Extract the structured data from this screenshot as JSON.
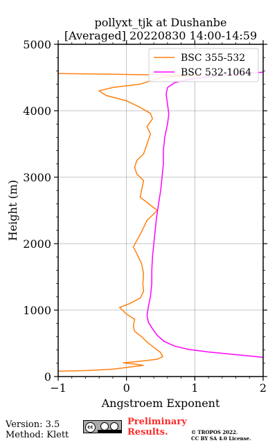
{
  "chart_data": {
    "type": "line",
    "title_line1": "pollyxt_tjk at Dushanbe",
    "title_line2": "[Averaged] 20220830 14:00-14:59",
    "xlabel": "Angstroem Exponent",
    "ylabel": "Height (m)",
    "xlim": [
      -1,
      2
    ],
    "ylim": [
      0,
      5000
    ],
    "xticks": [
      -1,
      0,
      1,
      2
    ],
    "yticks": [
      0,
      1000,
      2000,
      3000,
      4000,
      5000
    ],
    "grid": true,
    "legend_position": "top-right",
    "series": [
      {
        "name": "BSC 355-532",
        "color": "#ff7f0e",
        "points": [
          [
            -1.0,
            80
          ],
          [
            -0.6,
            90
          ],
          [
            -0.2,
            110
          ],
          [
            0.1,
            150
          ],
          [
            0.25,
            170
          ],
          [
            0.1,
            190
          ],
          [
            -0.05,
            205
          ],
          [
            0.2,
            230
          ],
          [
            0.45,
            260
          ],
          [
            0.53,
            300
          ],
          [
            0.5,
            360
          ],
          [
            0.4,
            440
          ],
          [
            0.3,
            520
          ],
          [
            0.22,
            600
          ],
          [
            0.12,
            680
          ],
          [
            0.1,
            760
          ],
          [
            0.12,
            860
          ],
          [
            0.0,
            940
          ],
          [
            -0.1,
            1040
          ],
          [
            0.05,
            1100
          ],
          [
            0.2,
            1180
          ],
          [
            0.25,
            1280
          ],
          [
            0.24,
            1400
          ],
          [
            0.25,
            1550
          ],
          [
            0.22,
            1700
          ],
          [
            0.15,
            1850
          ],
          [
            0.1,
            1950
          ],
          [
            0.18,
            2100
          ],
          [
            0.23,
            2200
          ],
          [
            0.3,
            2350
          ],
          [
            0.45,
            2500
          ],
          [
            0.3,
            2620
          ],
          [
            0.2,
            2700
          ],
          [
            0.22,
            2800
          ],
          [
            0.25,
            2950
          ],
          [
            0.15,
            3050
          ],
          [
            0.12,
            3150
          ],
          [
            0.15,
            3250
          ],
          [
            0.25,
            3350
          ],
          [
            0.3,
            3500
          ],
          [
            0.35,
            3650
          ],
          [
            0.3,
            3760
          ],
          [
            0.38,
            3880
          ],
          [
            0.35,
            3960
          ],
          [
            0.2,
            4050
          ],
          [
            0.0,
            4150
          ],
          [
            -0.3,
            4230
          ],
          [
            -0.4,
            4300
          ],
          [
            -0.2,
            4350
          ],
          [
            0.2,
            4400
          ],
          [
            0.35,
            4450
          ],
          [
            0.5,
            4500
          ],
          [
            0.7,
            4520
          ],
          [
            1.1,
            4530
          ],
          [
            -0.2,
            4550
          ],
          [
            -1.0,
            4560
          ]
        ]
      },
      {
        "name": "BSC 532-1064",
        "color": "#ff00ff",
        "points": [
          [
            2.0,
            290
          ],
          [
            1.8,
            310
          ],
          [
            1.5,
            340
          ],
          [
            1.2,
            370
          ],
          [
            0.9,
            410
          ],
          [
            0.7,
            460
          ],
          [
            0.55,
            530
          ],
          [
            0.45,
            620
          ],
          [
            0.38,
            720
          ],
          [
            0.32,
            820
          ],
          [
            0.3,
            920
          ],
          [
            0.32,
            1050
          ],
          [
            0.35,
            1200
          ],
          [
            0.37,
            1400
          ],
          [
            0.37,
            1600
          ],
          [
            0.38,
            1800
          ],
          [
            0.4,
            2000
          ],
          [
            0.42,
            2200
          ],
          [
            0.44,
            2400
          ],
          [
            0.47,
            2600
          ],
          [
            0.5,
            2800
          ],
          [
            0.52,
            3000
          ],
          [
            0.54,
            3200
          ],
          [
            0.54,
            3400
          ],
          [
            0.56,
            3600
          ],
          [
            0.6,
            3800
          ],
          [
            0.62,
            3950
          ],
          [
            0.6,
            4100
          ],
          [
            0.58,
            4250
          ],
          [
            0.6,
            4350
          ],
          [
            0.7,
            4420
          ],
          [
            0.9,
            4470
          ],
          [
            1.2,
            4510
          ],
          [
            1.6,
            4550
          ],
          [
            2.0,
            4580
          ]
        ]
      }
    ]
  },
  "footer": {
    "version": "Version: 3.5",
    "method": "Method: Klett",
    "cc_label": "cc",
    "preliminary_line1": "Preliminary",
    "preliminary_line2": "Results.",
    "copyright_line1": "© TROPOS 2022.",
    "copyright_line2": "CC BY SA 4.0 License."
  }
}
